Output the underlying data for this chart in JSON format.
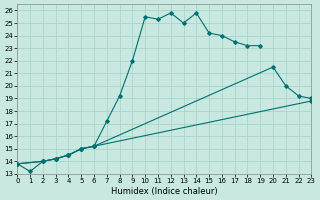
{
  "xlabel": "Humidex (Indice chaleur)",
  "bg_color": "#c8e8e0",
  "grid_color": "#a8d4cc",
  "line_color": "#007070",
  "xlim": [
    0,
    23
  ],
  "ylim": [
    13,
    26.5
  ],
  "xticks": [
    0,
    1,
    2,
    3,
    4,
    5,
    6,
    7,
    8,
    9,
    10,
    11,
    12,
    13,
    14,
    15,
    16,
    17,
    18,
    19,
    20,
    21,
    22,
    23
  ],
  "yticks": [
    13,
    14,
    15,
    16,
    17,
    18,
    19,
    20,
    21,
    22,
    23,
    24,
    25,
    26
  ],
  "series1_x": [
    0,
    1,
    2,
    3,
    4,
    5,
    6,
    7,
    8,
    9,
    10,
    11,
    12,
    13,
    14,
    15,
    16,
    17,
    18,
    19
  ],
  "series1_y": [
    13.8,
    13.2,
    14.0,
    14.2,
    14.5,
    15.0,
    15.2,
    17.2,
    19.2,
    22.0,
    25.5,
    25.3,
    25.8,
    25.0,
    25.8,
    24.2,
    24.0,
    23.5,
    23.2,
    23.2
  ],
  "series2_x": [
    0,
    2,
    3,
    4,
    5,
    6,
    20,
    21,
    22,
    23
  ],
  "series2_y": [
    13.8,
    14.0,
    14.2,
    14.5,
    15.0,
    15.2,
    21.5,
    20.0,
    19.2,
    19.0
  ],
  "series3_x": [
    0,
    2,
    3,
    4,
    5,
    6,
    23
  ],
  "series3_y": [
    13.8,
    14.0,
    14.2,
    14.5,
    15.0,
    15.2,
    18.8
  ]
}
